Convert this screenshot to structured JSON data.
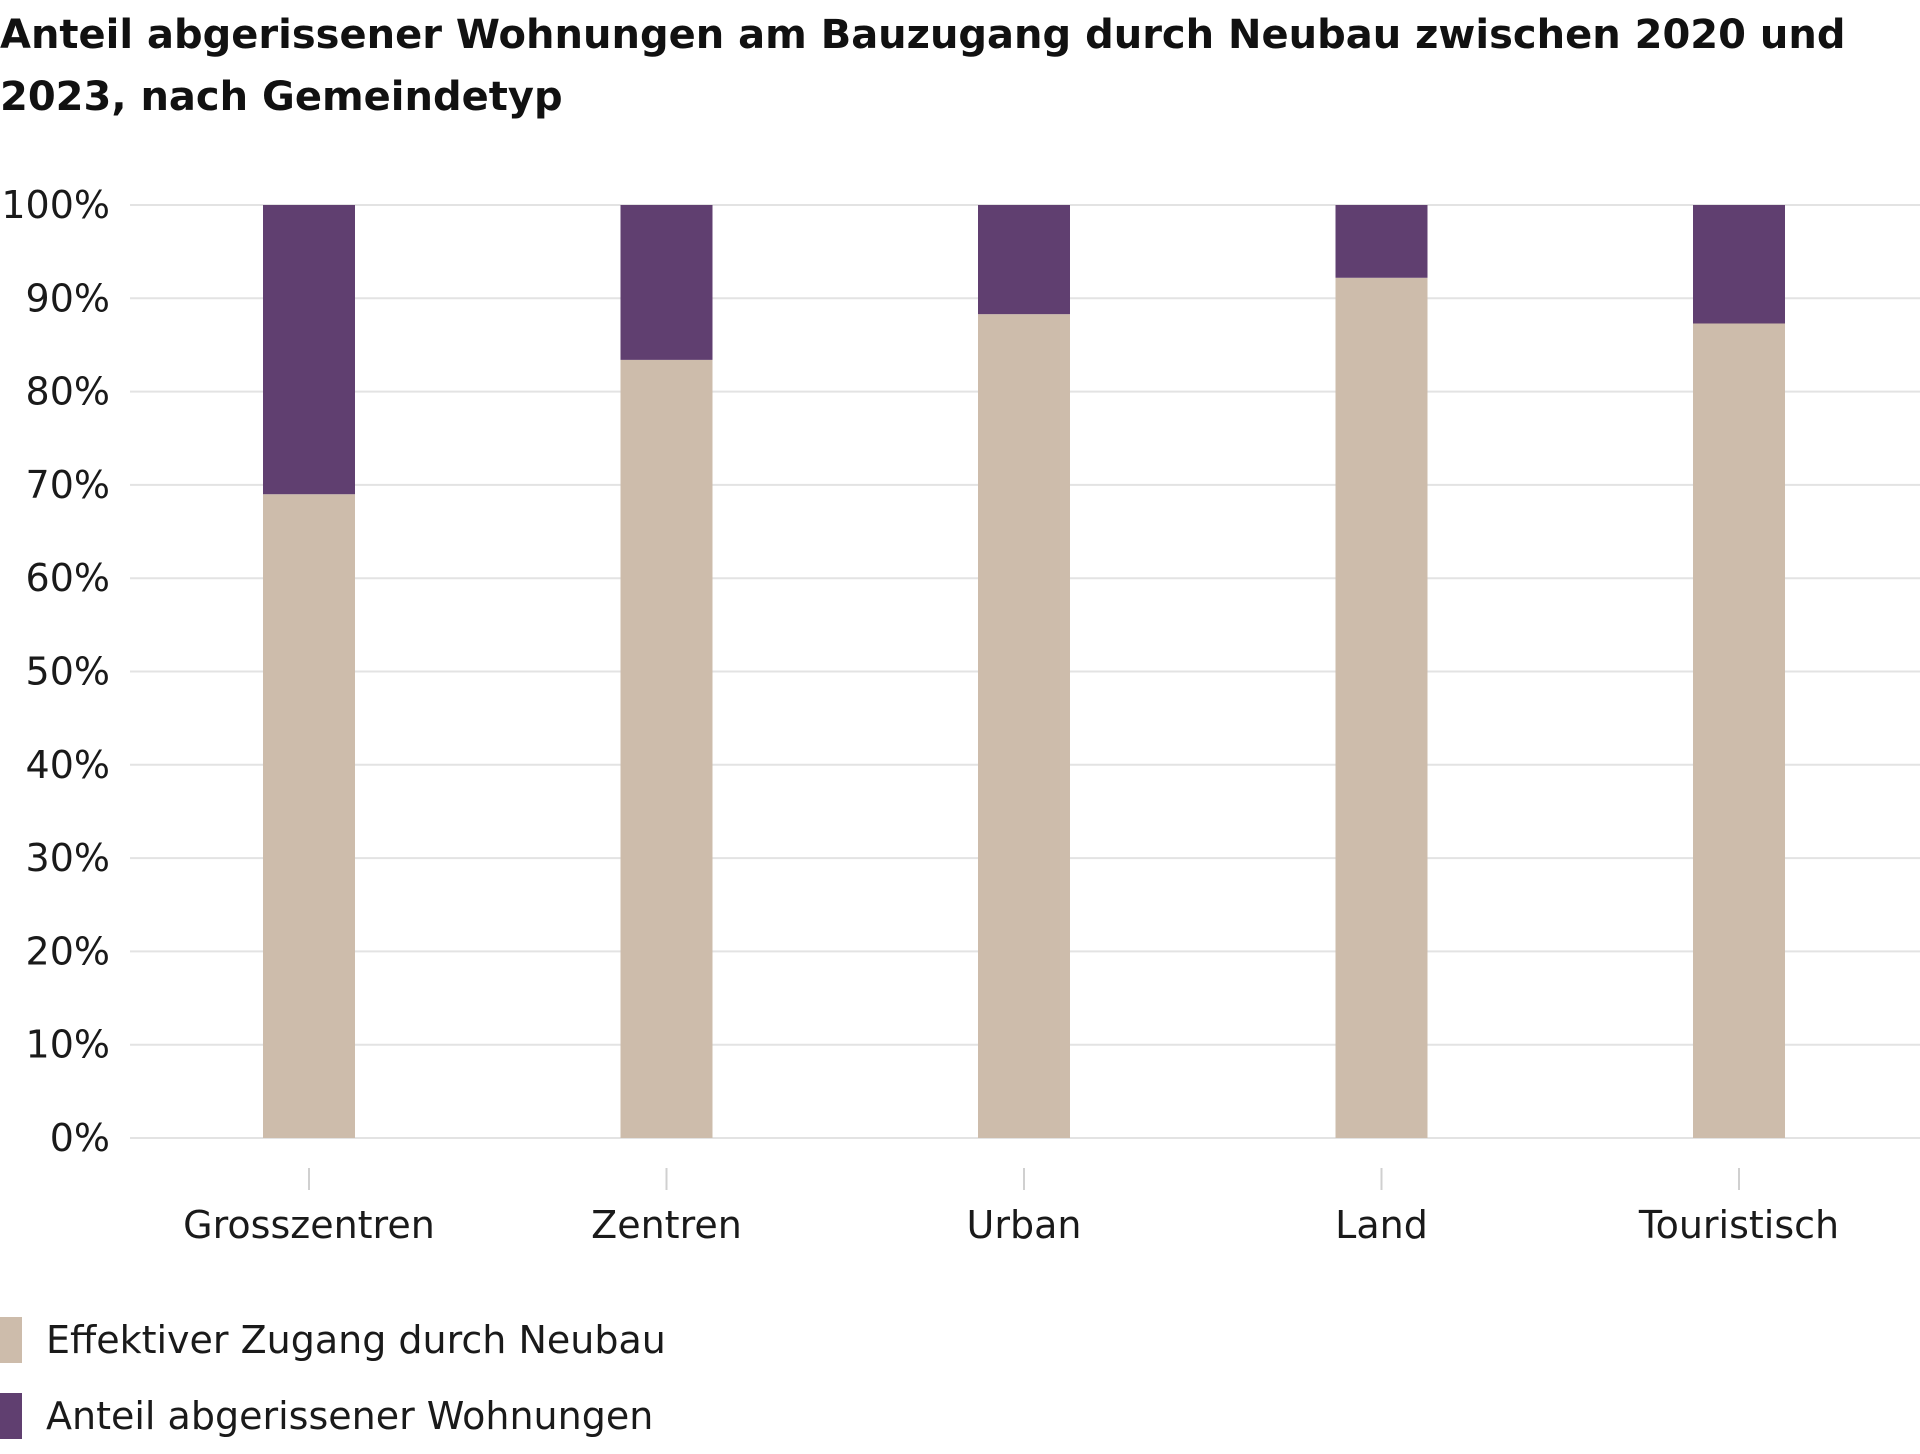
{
  "chart_data": {
    "type": "bar",
    "stacked": true,
    "title": "Anteil abgerissener Wohnungen am Bauzugang durch Neubau zwischen 2020 und 2023, nach Gemeindetyp",
    "categories": [
      "Grosszentren",
      "Zentren",
      "Urban",
      "Land",
      "Touristisch"
    ],
    "series": [
      {
        "name": "Effektiver Zugang durch Neubau",
        "color": "#cdbcab",
        "values": [
          69,
          83.4,
          88.3,
          92.2,
          87.3
        ]
      },
      {
        "name": "Anteil abgerissener Wohnungen",
        "color": "#603f70",
        "values": [
          31,
          16.6,
          11.7,
          7.8,
          12.7
        ]
      }
    ],
    "ylim": [
      0,
      100
    ],
    "yticks": [
      "0%",
      "10%",
      "20%",
      "30%",
      "40%",
      "50%",
      "60%",
      "70%",
      "80%",
      "90%",
      "100%"
    ],
    "grid": true,
    "gridColor": "#e3e3e3",
    "legend_position": "bottom-left"
  }
}
